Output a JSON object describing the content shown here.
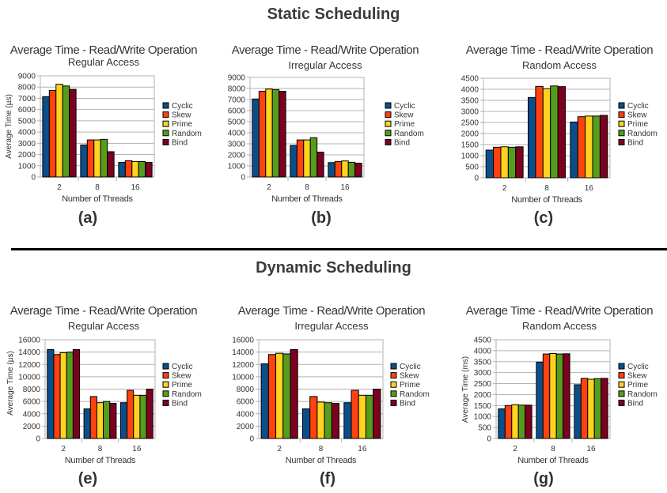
{
  "sections": {
    "static_title": "Static Scheduling",
    "dynamic_title": "Dynamic Scheduling"
  },
  "colors": {
    "Cyclic": "#0b4f8a",
    "Skew": "#ff420e",
    "Prime": "#ffd320",
    "Random": "#579d1c",
    "Bind": "#7e0021"
  },
  "chart_data": [
    {
      "type": "bar",
      "panel": "(a)",
      "title": "Average Time - Read/Write Operation",
      "subtitle": "Regular Access",
      "xlabel": "Number of Threads",
      "ylabel": "Average Time (µs)",
      "categories": [
        "2",
        "8",
        "16"
      ],
      "ylim": [
        0,
        9000
      ],
      "yticks": [
        0,
        1000,
        2000,
        3000,
        4000,
        5000,
        6000,
        7000,
        8000,
        9000
      ],
      "series": [
        {
          "name": "Cyclic",
          "values": [
            7150,
            2850,
            1300
          ]
        },
        {
          "name": "Skew",
          "values": [
            7700,
            3300,
            1450
          ]
        },
        {
          "name": "Prime",
          "values": [
            8250,
            3300,
            1380
          ]
        },
        {
          "name": "Random",
          "values": [
            8100,
            3350,
            1370
          ]
        },
        {
          "name": "Bind",
          "values": [
            7800,
            2250,
            1300
          ]
        }
      ]
    },
    {
      "type": "bar",
      "panel": "(b)",
      "title": "Average Time - Read/Write Operation",
      "subtitle": "Irregular Access",
      "xlabel": "Number of Threads",
      "ylabel": "",
      "categories": [
        "2",
        "8",
        "16"
      ],
      "ylim": [
        0,
        9000
      ],
      "yticks": [
        0,
        1000,
        2000,
        3000,
        4000,
        5000,
        6000,
        7000,
        8000,
        9000
      ],
      "series": [
        {
          "name": "Cyclic",
          "values": [
            7050,
            2850,
            1300
          ]
        },
        {
          "name": "Skew",
          "values": [
            7750,
            3350,
            1400
          ]
        },
        {
          "name": "Prime",
          "values": [
            7950,
            3350,
            1450
          ]
        },
        {
          "name": "Random",
          "values": [
            7900,
            3550,
            1330
          ]
        },
        {
          "name": "Bind",
          "values": [
            7750,
            2250,
            1250
          ]
        }
      ]
    },
    {
      "type": "bar",
      "panel": "(c)",
      "title": "Average Time - Read/Write Operation",
      "subtitle": "Random Access",
      "xlabel": "Number of Threads",
      "ylabel": "",
      "categories": [
        "2",
        "8",
        "16"
      ],
      "ylim": [
        0,
        4500
      ],
      "yticks": [
        0,
        500,
        1000,
        1500,
        2000,
        2500,
        3000,
        3500,
        4000,
        4500
      ],
      "series": [
        {
          "name": "Cyclic",
          "values": [
            1250,
            3630,
            2520
          ]
        },
        {
          "name": "Skew",
          "values": [
            1380,
            4130,
            2760
          ]
        },
        {
          "name": "Prime",
          "values": [
            1400,
            4030,
            2790
          ]
        },
        {
          "name": "Random",
          "values": [
            1380,
            4150,
            2790
          ]
        },
        {
          "name": "Bind",
          "values": [
            1400,
            4120,
            2820
          ]
        }
      ]
    },
    {
      "type": "bar",
      "panel": "(e)",
      "title": "Average Time - Read/Write Operation",
      "subtitle": "Regular Access",
      "xlabel": "Number of Threads",
      "ylabel": "Average Time (µs)",
      "categories": [
        "2",
        "8",
        "16"
      ],
      "ylim": [
        0,
        16000
      ],
      "yticks": [
        0,
        2000,
        4000,
        6000,
        8000,
        10000,
        12000,
        14000,
        16000
      ],
      "series": [
        {
          "name": "Cyclic",
          "values": [
            14400,
            4800,
            5800
          ]
        },
        {
          "name": "Skew",
          "values": [
            13600,
            6800,
            7800
          ]
        },
        {
          "name": "Prime",
          "values": [
            13900,
            5800,
            7000
          ]
        },
        {
          "name": "Random",
          "values": [
            14000,
            6000,
            7000
          ]
        },
        {
          "name": "Bind",
          "values": [
            14400,
            5700,
            8000
          ]
        }
      ]
    },
    {
      "type": "bar",
      "panel": "(f)",
      "title": "Average Time - Read/Write Operation",
      "subtitle": "Irregular Access",
      "xlabel": "Number of Threads",
      "ylabel": "",
      "categories": [
        "2",
        "8",
        "16"
      ],
      "ylim": [
        0,
        16000
      ],
      "yticks": [
        0,
        2000,
        4000,
        6000,
        8000,
        10000,
        12000,
        14000,
        16000
      ],
      "series": [
        {
          "name": "Cyclic",
          "values": [
            12100,
            4800,
            5800
          ]
        },
        {
          "name": "Skew",
          "values": [
            13600,
            6800,
            7800
          ]
        },
        {
          "name": "Prime",
          "values": [
            13800,
            5900,
            7000
          ]
        },
        {
          "name": "Random",
          "values": [
            13700,
            5800,
            7000
          ]
        },
        {
          "name": "Bind",
          "values": [
            14400,
            5700,
            8000
          ]
        }
      ]
    },
    {
      "type": "bar",
      "panel": "(g)",
      "title": "Average Time - Read/Write Operation",
      "subtitle": "Random Access",
      "xlabel": "Number of Threads",
      "ylabel": "Average Time (ms)",
      "categories": [
        "2",
        "8",
        "16"
      ],
      "ylim": [
        0,
        4500
      ],
      "yticks": [
        0,
        500,
        1000,
        1500,
        2000,
        2500,
        3000,
        3500,
        4000,
        4500
      ],
      "series": [
        {
          "name": "Cyclic",
          "values": [
            1350,
            3480,
            2450
          ]
        },
        {
          "name": "Skew",
          "values": [
            1500,
            3850,
            2740
          ]
        },
        {
          "name": "Prime",
          "values": [
            1540,
            3870,
            2700
          ]
        },
        {
          "name": "Random",
          "values": [
            1520,
            3850,
            2730
          ]
        },
        {
          "name": "Bind",
          "values": [
            1520,
            3860,
            2740
          ]
        }
      ]
    }
  ]
}
